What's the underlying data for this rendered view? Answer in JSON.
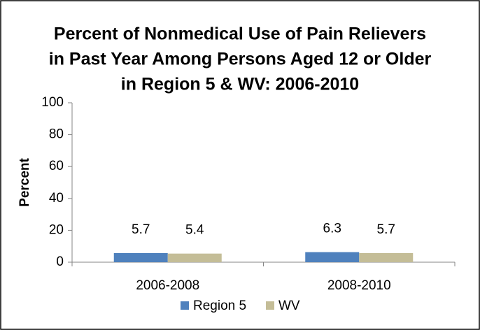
{
  "chart_data": {
    "type": "bar",
    "title": [
      "Percent of Nonmedical Use of Pain Relievers",
      "in Past Year Among Persons Aged 12 or Older",
      "in Region 5 & WV: 2006-2010"
    ],
    "y_label": "Percent",
    "categories": [
      "2006-2008",
      "2008-2010"
    ],
    "series": [
      {
        "name": "Region 5",
        "color": "#4f81bd",
        "values": [
          5.7,
          6.3
        ]
      },
      {
        "name": "WV",
        "color": "#c4bd97",
        "values": [
          5.4,
          5.7
        ]
      }
    ],
    "ylim": [
      0,
      100
    ],
    "yticks": [
      0,
      20,
      40,
      60,
      80,
      100
    ],
    "grid": false,
    "legend": "bottom"
  }
}
